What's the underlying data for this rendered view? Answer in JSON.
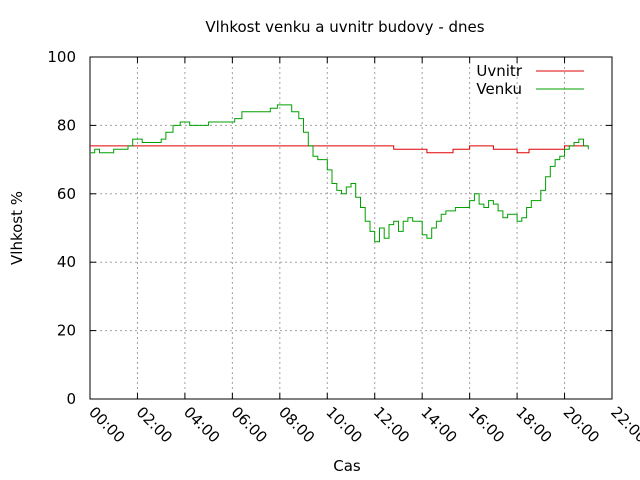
{
  "chart_data": {
    "type": "line",
    "title": "Vlhkost venku a uvnitr budovy - dnes",
    "xlabel": "Cas",
    "ylabel": "Vlhkost %",
    "xlim": [
      0,
      22
    ],
    "ylim": [
      0,
      100
    ],
    "xtick_values": [
      0,
      2,
      4,
      6,
      8,
      10,
      12,
      14,
      16,
      18,
      20,
      22
    ],
    "xtick_labels": [
      "00:00",
      "02:00",
      "04:00",
      "06:00",
      "08:00",
      "10:00",
      "12:00",
      "14:00",
      "16:00",
      "18:00",
      "20:00",
      "22:00"
    ],
    "ytick_values": [
      0,
      20,
      40,
      60,
      80,
      100
    ],
    "ytick_labels": [
      "0",
      "20",
      "40",
      "60",
      "80",
      "100"
    ],
    "grid": true,
    "legend_position": "top-right",
    "series": [
      {
        "name": "Uvnitr",
        "color": "#e00000",
        "x": [
          0,
          12.0,
          12.8,
          13.4,
          13.8,
          14.2,
          14.6,
          15.0,
          15.3,
          15.7,
          16.0,
          16.3,
          16.6,
          17.0,
          17.4,
          17.8,
          18.0,
          18.5,
          19.0,
          19.5,
          20.0,
          20.5,
          21.0
        ],
        "y": [
          74,
          74,
          73,
          73,
          73,
          72,
          72,
          72,
          73,
          73,
          74,
          74,
          74,
          73,
          73,
          73,
          72,
          73,
          73,
          73,
          74,
          74,
          74
        ]
      },
      {
        "name": "Venku",
        "color": "#00a000",
        "x": [
          0,
          0.2,
          0.4,
          0.6,
          1.0,
          1.4,
          1.6,
          1.8,
          2.2,
          2.6,
          3.0,
          3.2,
          3.5,
          3.8,
          4.2,
          4.6,
          5.0,
          5.4,
          5.8,
          6.1,
          6.4,
          6.8,
          7.2,
          7.6,
          7.9,
          8.2,
          8.5,
          8.8,
          9.0,
          9.2,
          9.4,
          9.6,
          9.8,
          10.0,
          10.2,
          10.4,
          10.6,
          10.8,
          11.0,
          11.2,
          11.4,
          11.6,
          11.8,
          12.0,
          12.2,
          12.4,
          12.6,
          12.8,
          13.0,
          13.2,
          13.4,
          13.6,
          13.8,
          14.0,
          14.2,
          14.4,
          14.6,
          14.8,
          15.0,
          15.2,
          15.4,
          15.6,
          15.8,
          16.0,
          16.2,
          16.4,
          16.6,
          16.8,
          17.0,
          17.2,
          17.4,
          17.6,
          17.8,
          18.0,
          18.2,
          18.4,
          18.6,
          18.8,
          19.0,
          19.2,
          19.4,
          19.6,
          19.8,
          20.0,
          20.2,
          20.4,
          20.6,
          20.8,
          21.0
        ],
        "y": [
          72,
          73,
          72,
          72,
          73,
          73,
          74,
          76,
          75,
          75,
          76,
          78,
          80,
          81,
          80,
          80,
          81,
          81,
          81,
          82,
          84,
          84,
          84,
          85,
          86,
          86,
          84,
          82,
          78,
          74,
          71,
          70,
          70,
          67,
          63,
          61,
          60,
          62,
          63,
          59,
          56,
          52,
          49,
          46,
          50,
          47,
          51,
          52,
          49,
          52,
          53,
          52,
          52,
          48,
          47,
          50,
          52,
          54,
          55,
          55,
          56,
          56,
          56,
          58,
          60,
          57,
          56,
          58,
          57,
          55,
          53,
          54,
          54,
          52,
          53,
          56,
          58,
          58,
          61,
          65,
          68,
          70,
          71,
          73,
          74,
          75,
          76,
          74,
          73
        ]
      }
    ]
  }
}
